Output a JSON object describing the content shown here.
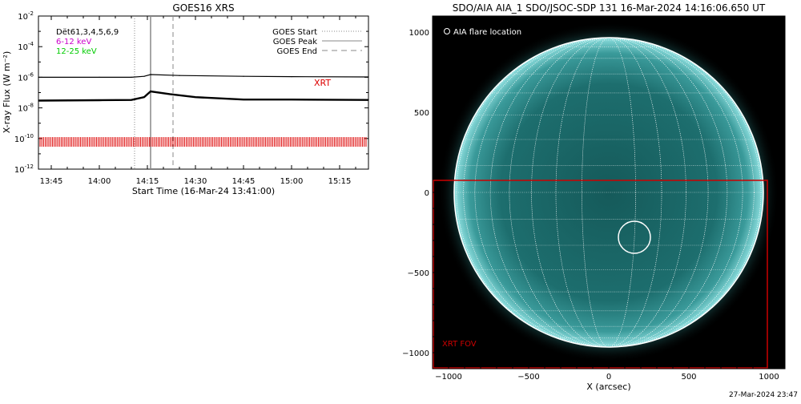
{
  "footer_timestamp": "27-Mar-2024 23:47",
  "chart_data": [
    {
      "type": "line",
      "title": "GOES16 XRS",
      "xlabel": "Start Time (16-Mar-24 13:41:00)",
      "ylabel": "X-ray Flux (W m⁻²)",
      "y_scale": "log",
      "ylim": [
        1e-12,
        0.01
      ],
      "y_ticks": [
        {
          "value": -2,
          "base": "10",
          "exp": "-2"
        },
        {
          "value": -4,
          "base": "10",
          "exp": "-4"
        },
        {
          "value": -6,
          "base": "10",
          "exp": "-6"
        },
        {
          "value": -8,
          "base": "10",
          "exp": "-8"
        },
        {
          "value": -10,
          "base": "10",
          "exp": "-10"
        },
        {
          "value": -12,
          "base": "10",
          "exp": "-12"
        }
      ],
      "xlim": [
        "13:41",
        "15:24"
      ],
      "x_ticks": [
        "13:45",
        "14:00",
        "14:15",
        "14:30",
        "14:45",
        "15:00",
        "15:15"
      ],
      "legend_left": [
        {
          "label": "Dët61,3,4,5,6,9",
          "color": "#000000"
        },
        {
          "label": "6-12 keV",
          "color": "#cc00cc"
        },
        {
          "label": "12-25 keV",
          "color": "#00cc00"
        }
      ],
      "legend_right": [
        {
          "label": "GOES Start",
          "style": "dotted"
        },
        {
          "label": "GOES Peak",
          "style": "solid"
        },
        {
          "label": "GOES End",
          "style": "dashed"
        }
      ],
      "event_lines": {
        "start": "14:11",
        "peak": "14:16",
        "end": "14:23"
      },
      "series": [
        {
          "color": "#000000",
          "values": [
            {
              "x": "13:41",
              "y": 1e-06
            },
            {
              "x": "14:00",
              "y": 1e-06
            },
            {
              "x": "14:10",
              "y": 1e-06
            },
            {
              "x": "14:14",
              "y": 1.15e-06
            },
            {
              "x": "14:16",
              "y": 1.5e-06
            },
            {
              "x": "14:25",
              "y": 1.3e-06
            },
            {
              "x": "14:45",
              "y": 1.15e-06
            },
            {
              "x": "15:00",
              "y": 1.1e-06
            },
            {
              "x": "15:24",
              "y": 1.05e-06
            }
          ]
        },
        {
          "color": "#000000",
          "values": [
            {
              "x": "13:41",
              "y": 3e-08
            },
            {
              "x": "14:00",
              "y": 3.2e-08
            },
            {
              "x": "14:10",
              "y": 3.3e-08
            },
            {
              "x": "14:14",
              "y": 5e-08
            },
            {
              "x": "14:16",
              "y": 1.2e-07
            },
            {
              "x": "14:22",
              "y": 8e-08
            },
            {
              "x": "14:30",
              "y": 5e-08
            },
            {
              "x": "14:45",
              "y": 3.5e-08
            },
            {
              "x": "15:00",
              "y": 3.5e-08
            },
            {
              "x": "15:24",
              "y": 3.3e-08
            }
          ]
        }
      ],
      "annotation": {
        "text": "XRT",
        "color": "#dd0000"
      },
      "xrt_band_level": 6e-11,
      "xrt_band_color": "#dd0000"
    },
    {
      "type": "image",
      "title": "SDO/AIA AIA_1 SDO/JSOC-SDP 131 16-Mar-2024 14:16:06.650 UT",
      "xlabel": "X (arcsec)",
      "xlim": [
        -1100,
        1100
      ],
      "ylim": [
        -1100,
        1100
      ],
      "x_ticks": [
        -1000,
        -500,
        0,
        500,
        1000
      ],
      "y_ticks": [
        1000,
        500,
        0,
        -500,
        -1000
      ],
      "x_tick_labels": [
        "−1000",
        "−500",
        "0",
        "500",
        "1000"
      ],
      "y_tick_labels": [
        "1000",
        "500",
        "0",
        "−500",
        "−1000"
      ],
      "solar_radius_arcsec": 965,
      "legend_label": "AIA flare location",
      "flare_location": {
        "x": 160,
        "y": -280,
        "radius": 100
      },
      "xrt_fov": {
        "x0": -1100,
        "x1": 990,
        "y0": -1100,
        "y1": 75,
        "label": "XRT FOV",
        "color": "#cc0000"
      }
    }
  ]
}
